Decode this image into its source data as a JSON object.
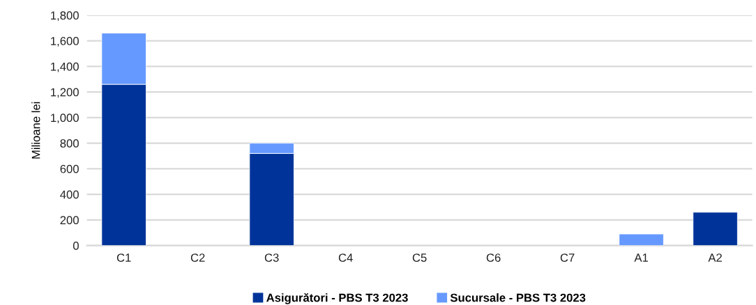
{
  "chart_data": {
    "type": "bar",
    "stacked": true,
    "ylabel": "Milioane lei",
    "categories": [
      "C1",
      "C2",
      "C3",
      "C4",
      "C5",
      "C6",
      "C7",
      "A1",
      "A2"
    ],
    "series": [
      {
        "name": "Asigurători - PBS T3 2023",
        "color": "#003399",
        "values": [
          1260,
          null,
          720,
          null,
          null,
          null,
          null,
          null,
          260
        ]
      },
      {
        "name": "Sucursale - PBS T3 2023",
        "color": "#6699ff",
        "values": [
          400,
          null,
          80,
          null,
          null,
          null,
          null,
          90,
          null
        ]
      }
    ],
    "ylim": [
      0,
      1800
    ],
    "yticks": [
      0,
      {
        "value": 200,
        "label": "200"
      },
      {
        "value": 400,
        "label": "400"
      },
      {
        "value": 600,
        "label": "600"
      },
      {
        "value": 800,
        "label": "800"
      },
      {
        "value": 1000,
        "label": "1,000"
      },
      {
        "value": 1200,
        "label": "1,200"
      },
      {
        "value": 1400,
        "label": "1,400"
      },
      {
        "value": 1600,
        "label": "1,600"
      },
      {
        "value": 1800,
        "label": "1,800"
      }
    ],
    "grid": "y",
    "legend": "bottom"
  }
}
